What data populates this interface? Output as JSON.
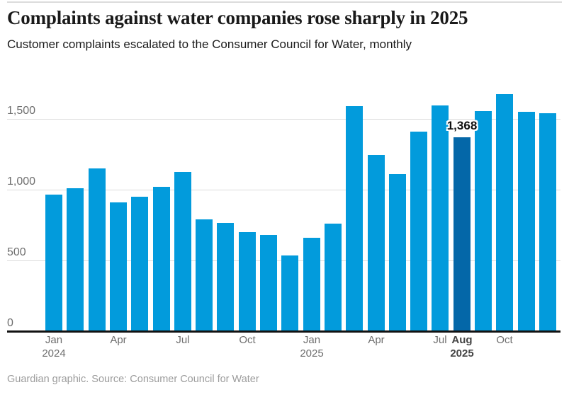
{
  "header": {
    "title": "Complaints against water companies rose sharply in 2025",
    "subtitle": "Customer complaints escalated to the Consumer Council for Water, monthly"
  },
  "footer": {
    "credit": "Guardian graphic. Source: Consumer Council for Water"
  },
  "colors": {
    "bar": "#029bdc",
    "bar_highlight": "#0467a8",
    "grid_line": "#dcdcdc",
    "axis_line": "#121212",
    "tick_label": "#6e6e6e",
    "tick_label_bold": "#444444",
    "annotation_text": "#111111",
    "top_rule": "#dcdcdc"
  },
  "chart_data": {
    "type": "bar",
    "title": "Complaints against water companies rose sharply in 2025",
    "subtitle": "Customer complaints escalated to the Consumer Council for Water, monthly",
    "xlabel": "",
    "ylabel": "",
    "grid": true,
    "legend": false,
    "ylim": [
      0,
      1750
    ],
    "categories": [
      "Jan 2024",
      "Feb 2024",
      "Mar 2024",
      "Apr 2024",
      "May 2024",
      "Jun 2024",
      "Jul 2024",
      "Aug 2024",
      "Sep 2024",
      "Oct 2024",
      "Nov 2024",
      "Dec 2024",
      "Jan 2025",
      "Feb 2025",
      "Mar 2025",
      "Apr 2025",
      "May 2025",
      "Jun 2025",
      "Jul 2025",
      "Aug 2025",
      "Sep 2025",
      "Oct 2025",
      "Nov 2025",
      "Dec 2025"
    ],
    "values": [
      965,
      1010,
      1150,
      910,
      950,
      1020,
      1125,
      790,
      765,
      700,
      680,
      535,
      660,
      760,
      1590,
      1245,
      1110,
      1410,
      1595,
      1368,
      1555,
      1675,
      1550,
      1540
    ],
    "highlight": {
      "category": "Aug 2025",
      "index": 19,
      "value": 1368,
      "label": "1,368"
    },
    "yticks": [
      {
        "value": 0,
        "label": "0"
      },
      {
        "value": 500,
        "label": "500"
      },
      {
        "value": 1000,
        "label": "1,000"
      },
      {
        "value": 1500,
        "label": "1,500"
      }
    ],
    "xticks": [
      {
        "index": 0,
        "label": "Jan",
        "sublabel": "2024",
        "bold": false
      },
      {
        "index": 3,
        "label": "Apr",
        "bold": false
      },
      {
        "index": 6,
        "label": "Jul",
        "bold": false
      },
      {
        "index": 9,
        "label": "Oct",
        "bold": false
      },
      {
        "index": 12,
        "label": "Jan",
        "sublabel": "2025",
        "bold": false
      },
      {
        "index": 15,
        "label": "Apr",
        "bold": false
      },
      {
        "index": 18,
        "label": "Jul",
        "bold": false
      },
      {
        "index": 19,
        "label": "Aug",
        "sublabel": "2025",
        "bold": true
      },
      {
        "index": 21,
        "label": "Oct",
        "bold": false
      }
    ]
  }
}
